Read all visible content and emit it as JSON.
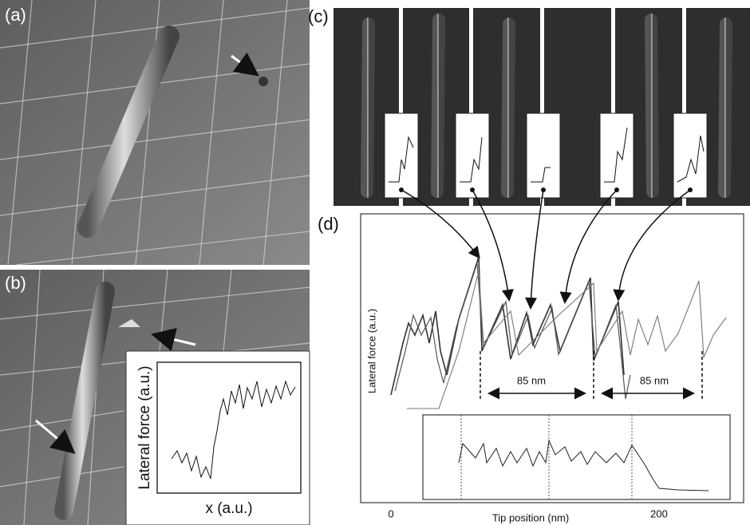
{
  "panels": [
    {
      "label": "(a)"
    },
    {
      "label": "(b)",
      "inset": {
        "y_label": "Lateral force (a.u.)",
        "x_label": "x (a.u.)"
      }
    },
    {
      "label": "(c)"
    },
    {
      "label": "(d)",
      "y_label": "Lateral force (a.u.)",
      "x_label": "Tip position (nm)",
      "x_ticks": [
        0,
        200
      ],
      "annotations": [
        "85 nm",
        "85 nm"
      ]
    }
  ]
}
